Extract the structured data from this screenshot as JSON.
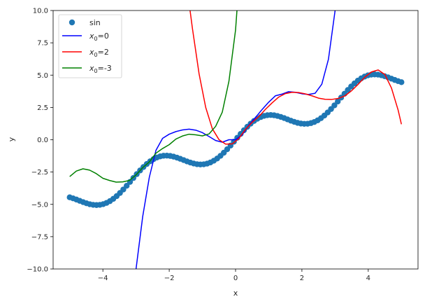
{
  "chart_data": {
    "type": "line",
    "title": "",
    "xlabel": "x",
    "ylabel": "y",
    "xlim": [
      -5.5,
      5.5
    ],
    "ylim": [
      -10,
      10
    ],
    "x_ticks": [
      -4,
      -2,
      0,
      2,
      4
    ],
    "x_tick_labels": [
      "−4",
      "−2",
      "0",
      "2",
      "4"
    ],
    "y_ticks": [
      -10,
      -7.5,
      -5,
      -2.5,
      0,
      2.5,
      5,
      7.5,
      10
    ],
    "y_tick_labels": [
      "−10.0",
      "−7.5",
      "−5.0",
      "−2.5",
      "0.0",
      "2.5",
      "5.0",
      "7.5",
      "10.0"
    ],
    "grid": false,
    "legend_position": "top-left",
    "scatter": {
      "name": "sin",
      "color": "#1f77b4",
      "x_range": [
        -5,
        5
      ],
      "count": 100,
      "function": "x + sin(2x)"
    },
    "series": [
      {
        "name_base": "x",
        "name_sub": "0",
        "name_suffix": "=0",
        "color": "#0000ff",
        "x": [
          -3.2,
          -3.0,
          -2.8,
          -2.6,
          -2.4,
          -2.2,
          -2.0,
          -1.8,
          -1.6,
          -1.4,
          -1.2,
          -1.0,
          -0.8,
          -0.6,
          -0.4,
          -0.2,
          0.0,
          0.2,
          0.4,
          0.6,
          0.8,
          1.0,
          1.2,
          1.4,
          1.6,
          1.8,
          2.0,
          2.2,
          2.4,
          2.6,
          2.8,
          3.0,
          3.2
        ],
        "y": [
          -12.93,
          -9.99,
          -5.95,
          -2.9,
          -0.82,
          0.11,
          0.43,
          0.63,
          0.76,
          0.82,
          0.74,
          0.55,
          0.25,
          -0.06,
          -0.19,
          0.0,
          0.0,
          0.38,
          1.12,
          1.72,
          2.34,
          2.91,
          3.4,
          3.53,
          3.72,
          3.67,
          3.56,
          3.5,
          3.6,
          4.3,
          6.23,
          9.99,
          16.4
        ]
      },
      {
        "name_base": "x",
        "name_sub": "0",
        "name_suffix": "=2",
        "color": "#ff0000",
        "x": [
          -1.5,
          -1.3,
          -1.1,
          -0.9,
          -0.7,
          -0.5,
          -0.3,
          -0.1,
          0.1,
          0.3,
          0.5,
          0.7,
          0.9,
          1.1,
          1.3,
          1.5,
          1.7,
          1.9,
          2.1,
          2.3,
          2.5,
          2.7,
          2.9,
          3.1,
          3.3,
          3.5,
          3.7,
          3.9,
          4.1,
          4.3,
          4.5,
          4.7,
          4.9,
          5.0
        ],
        "y": [
          12.5,
          8.6,
          5.1,
          2.5,
          0.85,
          0.01,
          -0.34,
          -0.32,
          0.1,
          0.8,
          1.35,
          1.79,
          2.35,
          2.85,
          3.3,
          3.57,
          3.67,
          3.65,
          3.55,
          3.4,
          3.22,
          3.13,
          3.12,
          3.2,
          3.4,
          3.8,
          4.3,
          4.85,
          5.25,
          5.4,
          5.05,
          4.0,
          2.3,
          1.2
        ]
      },
      {
        "name_base": "x",
        "name_sub": "0",
        "name_suffix": "=-3",
        "color": "#008000",
        "x": [
          -5.0,
          -4.8,
          -4.6,
          -4.4,
          -4.2,
          -4.0,
          -3.8,
          -3.6,
          -3.4,
          -3.2,
          -3.0,
          -2.8,
          -2.6,
          -2.4,
          -2.2,
          -2.0,
          -1.8,
          -1.6,
          -1.4,
          -1.2,
          -1.0,
          -0.8,
          -0.6,
          -0.4,
          -0.2,
          0.0,
          0.05
        ],
        "y": [
          -2.85,
          -2.42,
          -2.25,
          -2.35,
          -2.62,
          -2.98,
          -3.15,
          -3.28,
          -3.26,
          -3.15,
          -2.72,
          -2.16,
          -1.72,
          -1.04,
          -0.68,
          -0.38,
          0.05,
          0.29,
          0.43,
          0.38,
          0.3,
          0.45,
          1.04,
          2.14,
          4.53,
          8.5,
          10.3
        ]
      }
    ]
  }
}
